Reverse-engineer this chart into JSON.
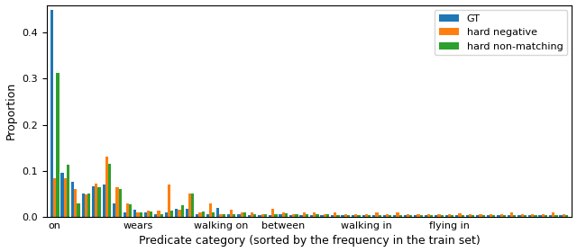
{
  "gt": [
    0.45,
    0.095,
    0.077,
    0.05,
    0.066,
    0.07,
    0.03,
    0.01,
    0.015,
    0.01,
    0.005,
    0.01,
    0.018,
    0.018,
    0.005,
    0.005,
    0.02,
    0.005,
    0.005,
    0.003,
    0.003,
    0.003,
    0.005,
    0.003,
    0.003,
    0.003,
    0.003,
    0.003,
    0.003,
    0.003,
    0.003,
    0.003,
    0.003,
    0.003,
    0.003,
    0.003,
    0.003,
    0.003,
    0.003,
    0.003,
    0.003,
    0.003,
    0.003,
    0.003,
    0.003,
    0.003,
    0.003,
    0.003,
    0.003,
    0.003
  ],
  "hard_negative": [
    0.085,
    0.085,
    0.06,
    0.048,
    0.073,
    0.13,
    0.065,
    0.03,
    0.01,
    0.013,
    0.013,
    0.07,
    0.015,
    0.05,
    0.01,
    0.03,
    0.005,
    0.015,
    0.01,
    0.01,
    0.005,
    0.018,
    0.01,
    0.005,
    0.01,
    0.01,
    0.005,
    0.01,
    0.005,
    0.005,
    0.005,
    0.01,
    0.005,
    0.01,
    0.005,
    0.005,
    0.005,
    0.005,
    0.005,
    0.008,
    0.005,
    0.005,
    0.005,
    0.005,
    0.01,
    0.005,
    0.005,
    0.005,
    0.01,
    0.005
  ],
  "hard_nonmatching": [
    0.312,
    0.113,
    0.03,
    0.05,
    0.065,
    0.115,
    0.06,
    0.027,
    0.01,
    0.012,
    0.005,
    0.013,
    0.025,
    0.05,
    0.012,
    0.01,
    0.005,
    0.005,
    0.01,
    0.005,
    0.005,
    0.005,
    0.007,
    0.005,
    0.005,
    0.005,
    0.005,
    0.003,
    0.003,
    0.003,
    0.003,
    0.003,
    0.003,
    0.003,
    0.003,
    0.003,
    0.003,
    0.003,
    0.003,
    0.003,
    0.003,
    0.003,
    0.003,
    0.003,
    0.003,
    0.003,
    0.003,
    0.003,
    0.003,
    0.003
  ],
  "xlabel": "Predicate category (sorted by the frequency in the train set)",
  "ylabel": "Proportion",
  "ylim": [
    0,
    0.46
  ],
  "legend_labels": [
    "GT",
    "hard negative",
    "hard non-matching"
  ],
  "bar_colors": [
    "#1f77b4",
    "#ff7f0e",
    "#2ca02c"
  ],
  "n_categories": 50,
  "tick_positions": [
    0,
    8,
    16,
    22,
    30,
    38,
    44
  ],
  "tick_labels": [
    "on",
    "wears",
    "walking on",
    "between",
    "walking in",
    "flying in",
    ""
  ]
}
